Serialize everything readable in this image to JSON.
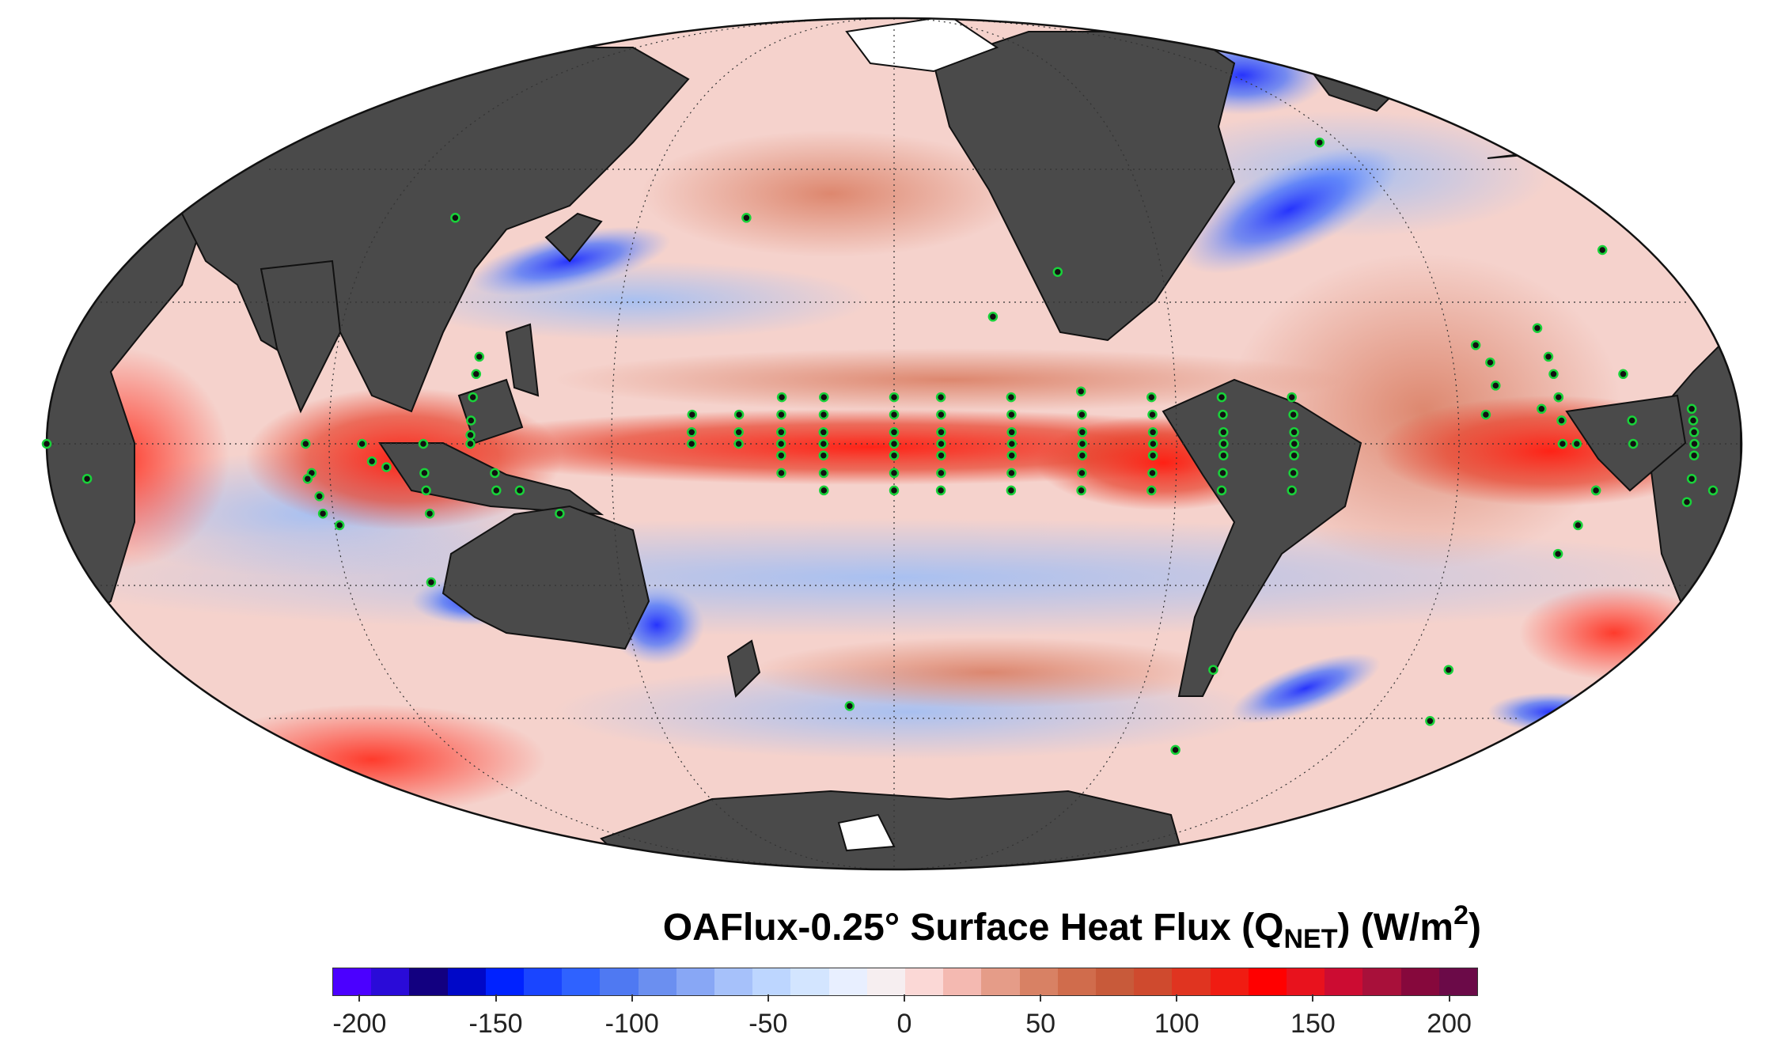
{
  "map": {
    "projection": "mollweide",
    "central_longitude": 180,
    "graticule_spacing_deg": 30,
    "station_marker_color": "#19d23a",
    "land_color": "#4a4a4a",
    "ocean_fill": "diverging",
    "stations": [
      [
        40,
        70
      ],
      [
        -40,
        -100
      ],
      [
        55,
        -52
      ],
      [
        30,
        -142
      ],
      [
        40,
        143
      ],
      [
        -4,
        72
      ],
      [
        -12,
        108
      ],
      [
        -47,
        168
      ],
      [
        -56,
        -94
      ],
      [
        -40,
        -41
      ],
      [
        -50,
        -30
      ],
      [
        -24,
        76
      ],
      [
        34,
        -11
      ],
      [
        22,
        -158
      ],
      [
        0,
        55
      ],
      [
        -5,
        56
      ],
      [
        -9,
        57
      ],
      [
        -14,
        60
      ],
      [
        0,
        80
      ],
      [
        -5,
        80
      ],
      [
        -8,
        80
      ],
      [
        -12,
        80
      ],
      [
        0,
        90
      ],
      [
        1.5,
        90
      ],
      [
        4,
        90
      ],
      [
        8,
        90
      ],
      [
        12,
        90
      ],
      [
        15,
        90
      ],
      [
        -5,
        95
      ],
      [
        -8,
        95
      ],
      [
        -8,
        100
      ],
      [
        0,
        67
      ],
      [
        -6,
        55
      ],
      [
        -12,
        57
      ],
      [
        -3,
        69
      ],
      [
        0,
        137
      ],
      [
        2,
        137
      ],
      [
        5,
        137
      ],
      [
        0,
        147
      ],
      [
        2,
        147
      ],
      [
        5,
        147
      ],
      [
        0,
        156
      ],
      [
        2,
        156
      ],
      [
        5,
        156
      ],
      [
        8,
        156
      ],
      [
        -2,
        156
      ],
      [
        -5,
        156
      ],
      [
        0,
        165
      ],
      [
        2,
        165
      ],
      [
        5,
        165
      ],
      [
        8,
        165
      ],
      [
        -2,
        165
      ],
      [
        -5,
        165
      ],
      [
        -8,
        165
      ],
      [
        0,
        180
      ],
      [
        2,
        180
      ],
      [
        5,
        180
      ],
      [
        8,
        180
      ],
      [
        -2,
        180
      ],
      [
        -5,
        180
      ],
      [
        -8,
        180
      ],
      [
        0,
        -170
      ],
      [
        2,
        -170
      ],
      [
        5,
        -170
      ],
      [
        8,
        -170
      ],
      [
        -2,
        -170
      ],
      [
        -5,
        -170
      ],
      [
        -8,
        -170
      ],
      [
        0,
        -155
      ],
      [
        2,
        -155
      ],
      [
        5,
        -155
      ],
      [
        8,
        -155
      ],
      [
        -2,
        -155
      ],
      [
        -5,
        -155
      ],
      [
        -8,
        -155
      ],
      [
        0,
        -140
      ],
      [
        2,
        -140
      ],
      [
        5,
        -140
      ],
      [
        9,
        -140
      ],
      [
        -2,
        -140
      ],
      [
        -5,
        -140
      ],
      [
        -8,
        -140
      ],
      [
        0,
        -125
      ],
      [
        2,
        -125
      ],
      [
        5,
        -125
      ],
      [
        8,
        -125
      ],
      [
        -2,
        -125
      ],
      [
        -5,
        -125
      ],
      [
        -8,
        -125
      ],
      [
        0,
        -110
      ],
      [
        2,
        -110
      ],
      [
        5,
        -110
      ],
      [
        8,
        -110
      ],
      [
        -2,
        -110
      ],
      [
        -5,
        -110
      ],
      [
        -8,
        -110
      ],
      [
        0,
        -95
      ],
      [
        2,
        -95
      ],
      [
        5,
        -95
      ],
      [
        8,
        -95
      ],
      [
        -2,
        -95
      ],
      [
        -5,
        -95
      ],
      [
        -8,
        -95
      ],
      [
        0,
        -35
      ],
      [
        0,
        -23
      ],
      [
        0,
        -10
      ],
      [
        -6,
        -10
      ],
      [
        -10,
        -10
      ],
      [
        4,
        -23
      ],
      [
        8,
        -38
      ],
      [
        12,
        -38
      ],
      [
        15,
        -38
      ],
      [
        20,
        -38
      ],
      [
        4,
        -38
      ],
      [
        -8,
        -30
      ],
      [
        -14,
        -32
      ],
      [
        -19,
        -34
      ],
      [
        8,
        -38
      ],
      [
        0,
        -38
      ],
      [
        -8,
        -30
      ],
      [
        12,
        -23
      ],
      [
        2,
        -10
      ],
      [
        4,
        -10
      ],
      [
        6,
        -10
      ],
      [
        -2,
        -10
      ],
      [
        -8,
        -5
      ],
      [
        0,
        0
      ],
      [
        -6,
        8
      ],
      [
        4,
        -38
      ],
      [
        17,
        -53
      ],
      [
        14,
        -51
      ],
      [
        10,
        -51
      ],
      [
        5,
        -54
      ],
      [
        6,
        -42
      ]
    ]
  },
  "colorbar": {
    "title_main": "OAFlux-0.25° Surface Heat Flux (Q",
    "title_sub": "NET",
    "title_tail": ") (W/m",
    "title_sup": "2",
    "title_close": ")",
    "range": [
      -210,
      210
    ],
    "ticks": [
      "-200",
      "-150",
      "-100",
      "-50",
      "0",
      "50",
      "100",
      "150",
      "200"
    ],
    "tick_values": [
      -200,
      -150,
      -100,
      -50,
      0,
      50,
      100,
      150,
      200
    ],
    "colors": [
      "#4b00ff",
      "#2a0bd8",
      "#120080",
      "#0008c8",
      "#0022ff",
      "#1a45ff",
      "#2f62ff",
      "#4f79f2",
      "#6b8ff0",
      "#88a7f5",
      "#a6c1fa",
      "#bdd6ff",
      "#d3e5ff",
      "#e8efff",
      "#f6eef0",
      "#fbd8d6",
      "#f4b9b1",
      "#e59c88",
      "#d88164",
      "#d06c4c",
      "#c85a3a",
      "#cf4a2e",
      "#e03420",
      "#f01c12",
      "#ff0000",
      "#e8121d",
      "#cc0c32",
      "#a8103a",
      "#86083c",
      "#6b0a48"
    ]
  }
}
